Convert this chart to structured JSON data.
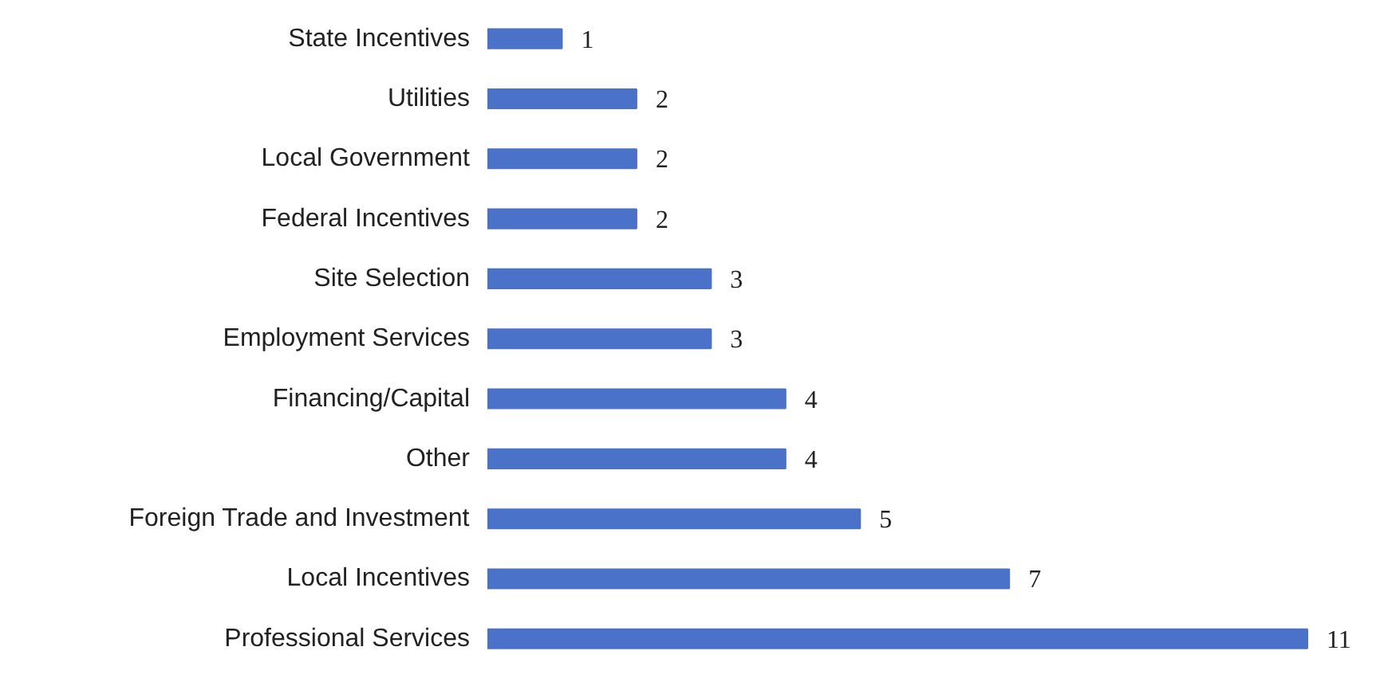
{
  "chart_data": {
    "type": "bar",
    "orientation": "horizontal",
    "categories": [
      "State Incentives",
      "Utilities",
      "Local Government",
      "Federal Incentives",
      "Site Selection",
      "Employment Services",
      "Financing/Capital",
      "Other",
      "Foreign Trade and Investment",
      "Local Incentives",
      "Professional Services"
    ],
    "values": [
      1,
      2,
      2,
      2,
      3,
      3,
      4,
      4,
      5,
      7,
      11
    ],
    "color": "#4a72c8",
    "data_labels": true,
    "grid": false,
    "tick_labels": "y"
  }
}
